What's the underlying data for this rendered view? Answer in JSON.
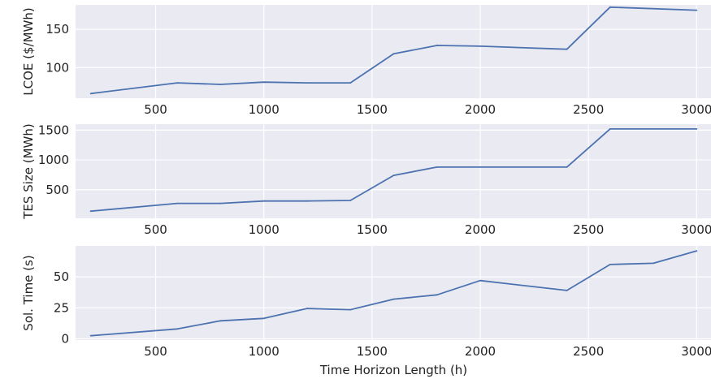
{
  "chart_data": [
    {
      "type": "line",
      "ylabel": "LCOE ($/MWh)",
      "xlabel": "",
      "xlim": [
        130,
        3070
      ],
      "ylim": [
        60,
        182
      ],
      "xticks": [
        500,
        1000,
        1500,
        2000,
        2500,
        3000
      ],
      "yticks": [
        100,
        150
      ],
      "x": [
        200,
        600,
        800,
        1000,
        1200,
        1400,
        1600,
        1800,
        2000,
        2400,
        2600,
        3000
      ],
      "y": [
        66,
        80,
        78,
        81,
        80,
        80,
        118,
        129,
        128,
        124,
        179,
        175
      ],
      "color": "#4c72b0",
      "grid": true,
      "background": "#eaeaf2"
    },
    {
      "type": "line",
      "ylabel": "TES Size (MWh)",
      "xlabel": "",
      "xlim": [
        130,
        3070
      ],
      "ylim": [
        20,
        1600
      ],
      "xticks": [
        500,
        1000,
        1500,
        2000,
        2500,
        3000
      ],
      "yticks": [
        500,
        1000,
        1500
      ],
      "x": [
        200,
        600,
        800,
        1000,
        1200,
        1400,
        1600,
        1800,
        2000,
        2400,
        2600,
        3000
      ],
      "y": [
        140,
        270,
        270,
        310,
        310,
        320,
        740,
        880,
        880,
        880,
        1520,
        1520
      ],
      "color": "#4c72b0",
      "grid": true,
      "background": "#eaeaf2"
    },
    {
      "type": "line",
      "ylabel": "Sol. Time (s)",
      "xlabel": "Time Horizon Length (h)",
      "xlim": [
        130,
        3070
      ],
      "ylim": [
        -1,
        75
      ],
      "xticks": [
        500,
        1000,
        1500,
        2000,
        2500,
        3000
      ],
      "yticks": [
        0,
        25,
        50
      ],
      "x": [
        200,
        600,
        800,
        1000,
        1200,
        1400,
        1600,
        1800,
        2000,
        2400,
        2600,
        2800,
        3000
      ],
      "y": [
        2.5,
        8,
        14.5,
        16.5,
        24.5,
        23.5,
        32,
        35.5,
        47,
        39,
        60,
        61,
        71
      ],
      "color": "#4c72b0",
      "grid": true,
      "background": "#eaeaf2"
    }
  ]
}
